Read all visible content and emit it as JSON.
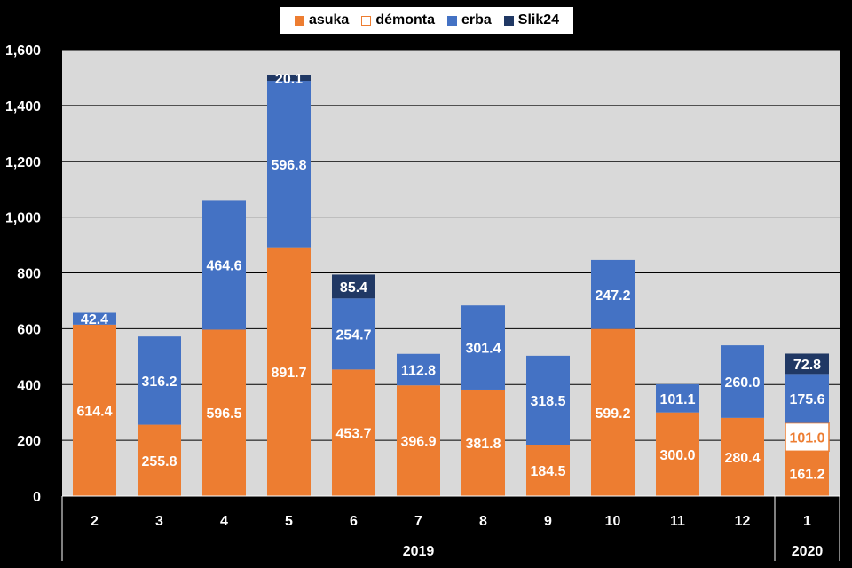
{
  "chart_data": {
    "type": "bar",
    "stacked": true,
    "categories": [
      "2",
      "3",
      "4",
      "5",
      "6",
      "7",
      "8",
      "9",
      "10",
      "11",
      "12",
      "1"
    ],
    "year_groups": [
      {
        "label": "2019",
        "count": 11
      },
      {
        "label": "2020",
        "count": 1
      }
    ],
    "series": [
      {
        "name": "asuka",
        "color": "#ED7D31",
        "values": [
          614.4,
          255.8,
          596.5,
          891.7,
          453.7,
          396.9,
          381.8,
          184.5,
          599.2,
          300.0,
          280.4,
          161.2
        ]
      },
      {
        "name": "démonta",
        "color": "#FFFFFF",
        "border": "#ED7D31",
        "label_color": "#ED7D31",
        "values": [
          null,
          null,
          null,
          null,
          null,
          null,
          null,
          null,
          null,
          null,
          null,
          101.0
        ]
      },
      {
        "name": "erba",
        "color": "#4472C4",
        "values": [
          42.4,
          316.2,
          464.6,
          596.8,
          254.7,
          112.8,
          301.4,
          318.5,
          247.2,
          101.1,
          260.0,
          175.6
        ]
      },
      {
        "name": "Slik24",
        "color": "#203864",
        "values": [
          null,
          null,
          null,
          20.1,
          85.4,
          null,
          null,
          null,
          null,
          null,
          null,
          72.8
        ]
      }
    ],
    "ylim": [
      0,
      1600
    ],
    "yticks": [
      "0",
      "200",
      "400",
      "600",
      "800",
      "1,000",
      "1,200",
      "1,400",
      "1,600"
    ],
    "grid": true,
    "legend_position": "top",
    "plot_background": "#D9D9D9"
  }
}
